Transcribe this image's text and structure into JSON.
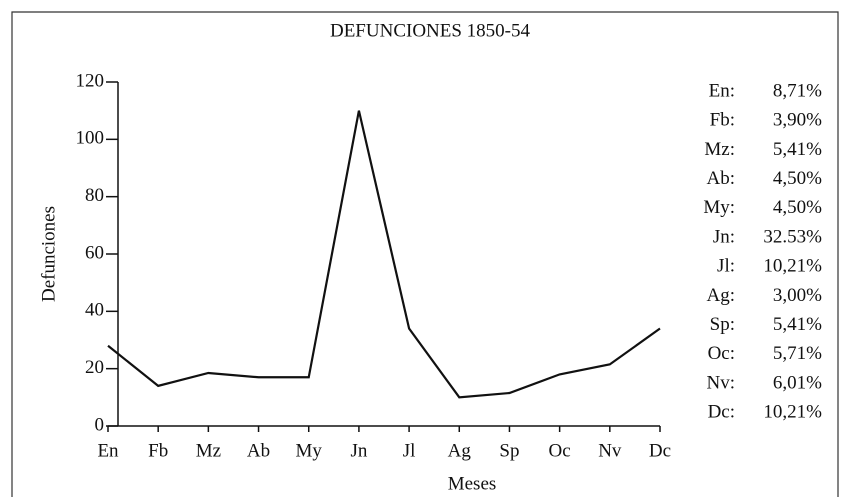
{
  "chart_data": {
    "type": "line",
    "title": "DEFUNCIONES 1850-54",
    "x_label": "Meses",
    "y_label": "Defunciones",
    "categories": [
      "En",
      "Fb",
      "Mz",
      "Ab",
      "My",
      "Jn",
      "Jl",
      "Ag",
      "Sp",
      "Oc",
      "Nv",
      "Dc"
    ],
    "values": [
      28,
      14,
      18.5,
      17,
      17,
      110,
      34,
      10,
      11.5,
      18,
      21.5,
      34
    ],
    "color": "#111111",
    "ylim": [
      0,
      120
    ],
    "yticks": [
      0,
      20,
      40,
      60,
      80,
      100,
      120
    ],
    "side_table": [
      {
        "month": "En:",
        "pct": "8,71%"
      },
      {
        "month": "Fb:",
        "pct": "3,90%"
      },
      {
        "month": "Mz:",
        "pct": "5,41%"
      },
      {
        "month": "Ab:",
        "pct": "4,50%"
      },
      {
        "month": "My:",
        "pct": "4,50%"
      },
      {
        "month": "Jn:",
        "pct": "32.53%"
      },
      {
        "month": "Jl:",
        "pct": "10,21%"
      },
      {
        "month": "Ag:",
        "pct": "3,00%"
      },
      {
        "month": "Sp:",
        "pct": "5,41%"
      },
      {
        "month": "Oc:",
        "pct": "5,71%"
      },
      {
        "month": "Nv:",
        "pct": "6,01%"
      },
      {
        "month": "Dc:",
        "pct": "10,21%"
      }
    ]
  }
}
